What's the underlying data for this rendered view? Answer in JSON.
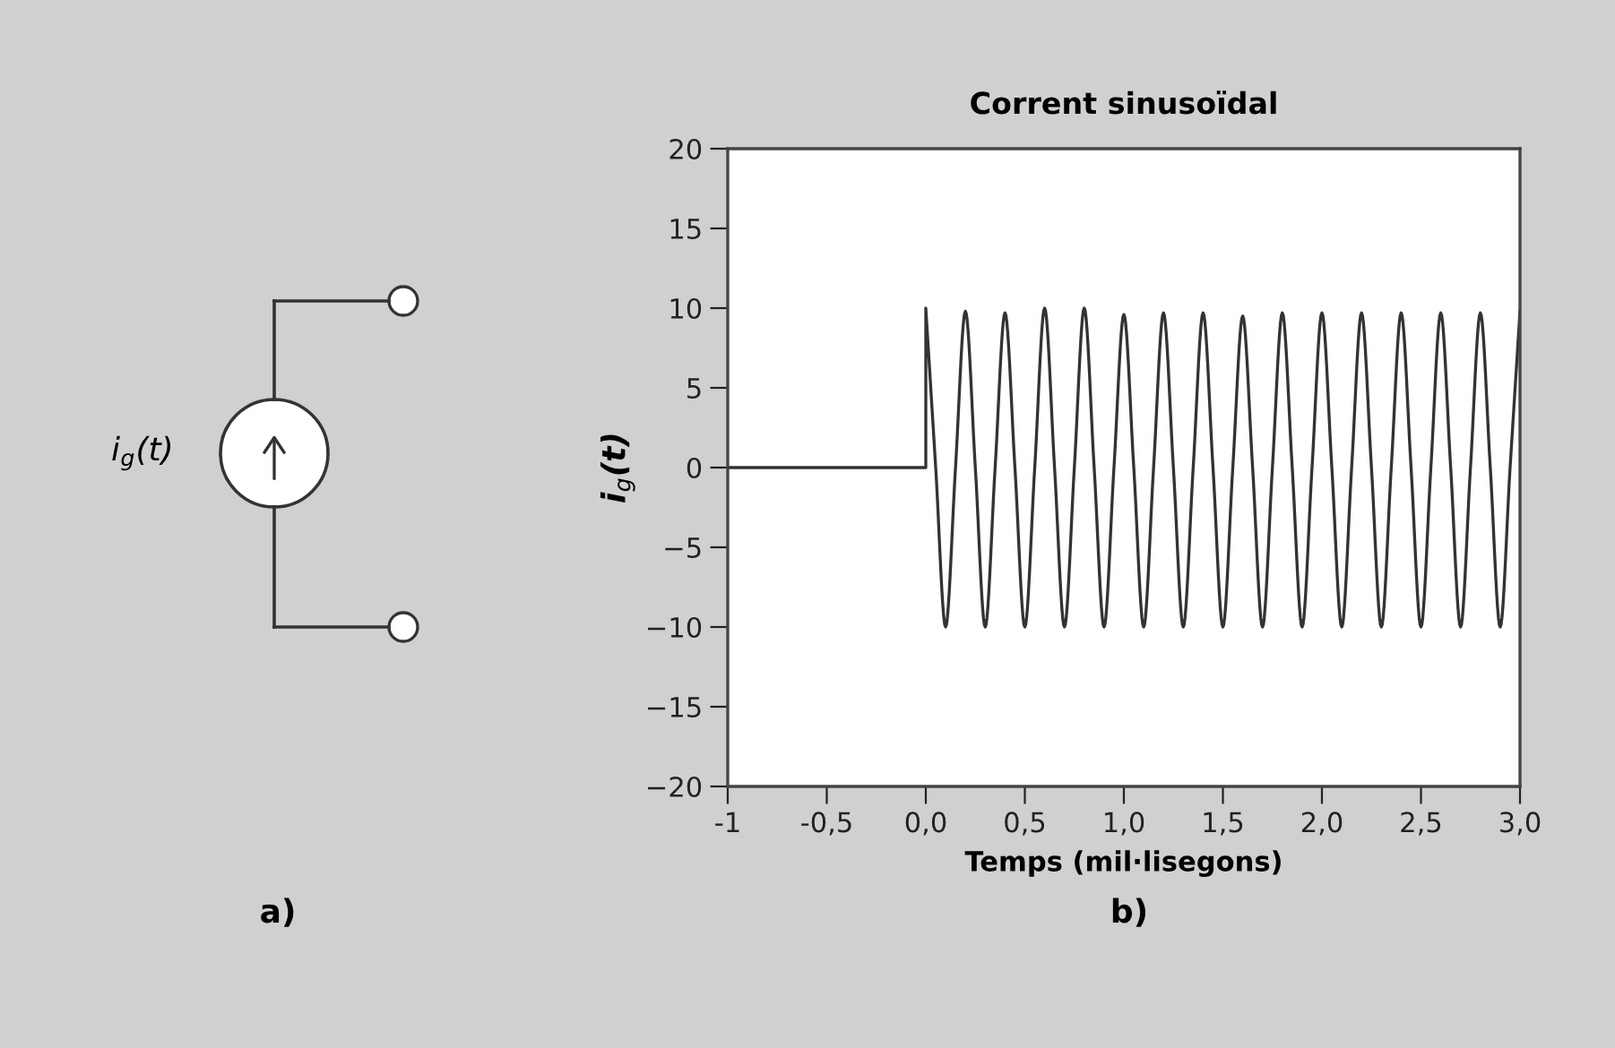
{
  "chart_data": {
    "type": "line",
    "title": "Corrent sinusoïdal",
    "xlabel": "Temps (mil·lisegons)",
    "ylabel": "i$_{g}$(t)",
    "annotations": [
      "i$_{g}$(t)",
      "a)",
      "b)"
    ],
    "series": [
      {
        "color": "#333333",
        "x": [
          -1,
          0,
          0,
          0.05,
          0.1,
          0.15,
          0.2,
          0.25,
          0.3,
          0.35,
          0.4,
          0.45,
          0.5,
          0.55,
          0.6,
          0.65,
          0.7,
          0.75,
          0.8,
          0.85,
          0.9,
          0.95,
          1.0,
          1.05,
          1.1,
          1.15,
          1.2,
          1.25,
          1.3,
          1.35,
          1.4,
          1.45,
          1.5,
          1.55,
          1.6,
          1.65,
          1.7,
          1.75,
          1.8,
          1.85,
          1.9,
          1.95,
          2.0,
          2.05,
          2.1,
          2.15,
          2.2,
          2.25,
          2.3,
          2.35,
          2.4,
          2.45,
          2.5,
          2.55,
          2.6,
          2.65,
          2.7,
          2.75,
          2.8,
          2.85,
          2.9,
          2.95,
          3.0
        ],
        "values": [
          0,
          0,
          10,
          0,
          -10,
          0,
          9.8,
          0,
          -10,
          0,
          9.7,
          0,
          -10,
          0,
          10,
          0,
          -10,
          0,
          10,
          0,
          -10,
          0,
          9.6,
          0,
          -10,
          0,
          9.7,
          0,
          -10,
          0,
          9.7,
          0,
          -10,
          0,
          9.5,
          0,
          -10,
          0,
          9.7,
          0,
          -10,
          0,
          9.7,
          0,
          -10,
          0,
          9.7,
          0,
          -10,
          0,
          9.7,
          0,
          -10,
          0,
          9.7,
          0,
          -10,
          0,
          9.7,
          0,
          -10,
          0,
          9.8
        ]
      }
    ],
    "xlim": [
      -1,
      3
    ],
    "xticks": [
      -1,
      {
        "value": -0.5,
        "label": "-0,5"
      },
      {
        "value": 0,
        "label": "0,0"
      },
      {
        "value": 0.5,
        "label": "0,5"
      },
      {
        "value": 1,
        "label": "1,0"
      },
      {
        "value": 1.5,
        "label": "1,5"
      },
      {
        "value": 2,
        "label": "2,0"
      },
      {
        "value": 2.5,
        "label": "2,5"
      },
      {
        "value": 3,
        "label": "3,0"
      }
    ],
    "ylim": [
      -20,
      20
    ],
    "yticks": [
      {
        "value": -20,
        "label": "−20"
      },
      {
        "value": -15,
        "label": "−15"
      },
      {
        "value": -10,
        "label": "−10"
      },
      {
        "value": -5,
        "label": "−5"
      },
      0,
      5,
      10,
      15,
      20
    ],
    "grid": false,
    "marker": "none",
    "line_style": "solid"
  }
}
